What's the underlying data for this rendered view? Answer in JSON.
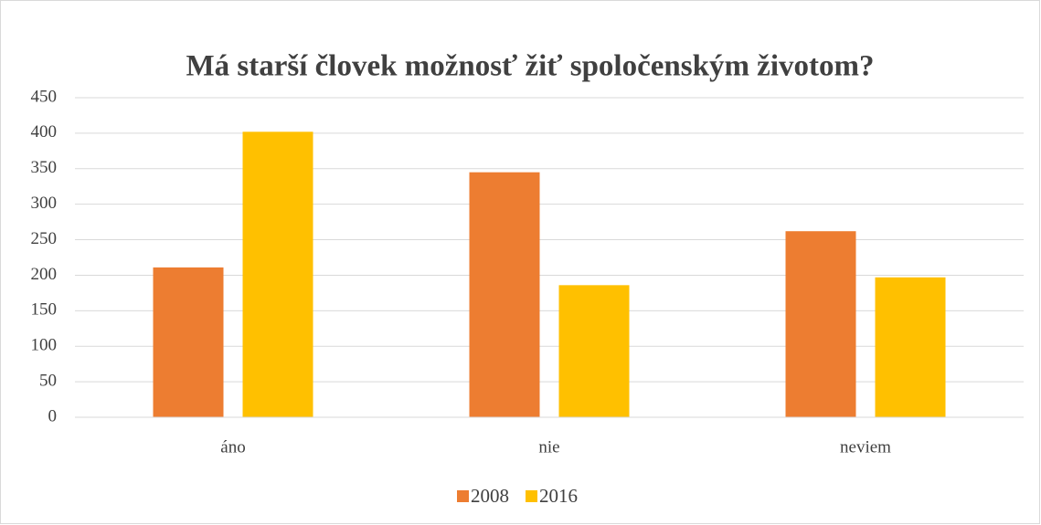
{
  "chart_data": {
    "type": "bar",
    "title": "Má starší človek možnosť žiť spoločenským životom?",
    "categories": [
      "áno",
      "nie",
      "neviem"
    ],
    "series": [
      {
        "name": "2008",
        "color": "#ed7d31",
        "values": [
          211,
          345,
          262
        ]
      },
      {
        "name": "2016",
        "color": "#ffc000",
        "values": [
          402,
          186,
          197
        ]
      }
    ],
    "ylim": [
      0,
      450
    ],
    "yticks": [
      0,
      50,
      100,
      150,
      200,
      250,
      300,
      350,
      400,
      450
    ],
    "grid": true,
    "legend": "bottom"
  }
}
